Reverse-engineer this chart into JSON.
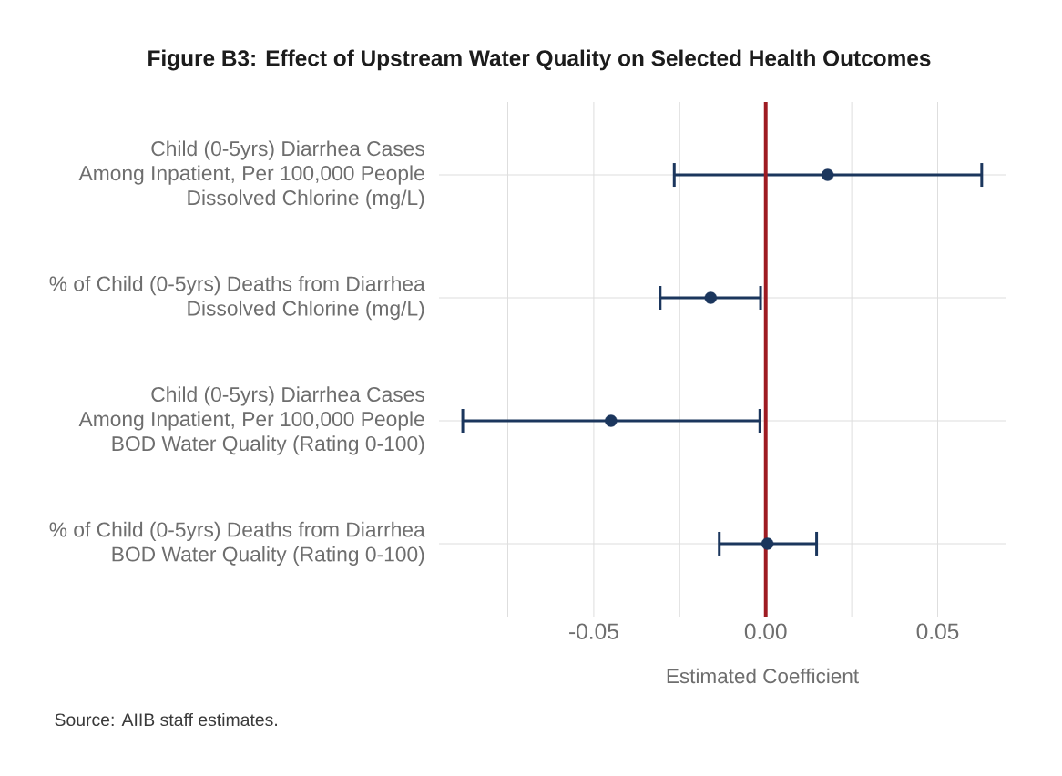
{
  "chart_data": {
    "type": "scatter",
    "title": "Figure B3: Effect of Upstream Water Quality on Selected Health Outcomes",
    "xlabel": "Estimated Coefficient",
    "orientation": "horizontal",
    "categories": [
      "Child (0-5yrs) Diarrhea Cases\nAmong Inpatient, Per 100,000 People\nDissolved Chlorine (mg/L)",
      "% of Child (0-5yrs) Deaths from Diarrhea\nDissolved Chlorine (mg/L)",
      "Child (0-5yrs) Diarrhea Cases\nAmong Inpatient, Per 100,000 People\nBOD Water Quality (Rating 0-100)",
      "% of Child (0-5yrs) Deaths from Diarrhea\nBOD Water Quality (Rating 0-100)"
    ],
    "values": [
      0.018,
      -0.016,
      -0.045,
      0.0005
    ],
    "errors": [
      [
        -0.0266,
        0.0628
      ],
      [
        -0.0307,
        -0.0015
      ],
      [
        -0.0881,
        -0.0017
      ],
      [
        -0.0135,
        0.0148
      ]
    ],
    "color": "#1b365d",
    "marker": "circle",
    "xlim": [
      -0.095,
      0.07
    ],
    "xticks": [
      {
        "value": -0.075,
        "label": null
      },
      {
        "value": -0.05,
        "label": "-0.05"
      },
      {
        "value": -0.025,
        "label": null
      },
      {
        "value": 0,
        "label": "0.00"
      },
      {
        "value": 0.025,
        "label": null
      },
      0.05
    ],
    "grid": true,
    "ref_lines": [
      {
        "axis": "x",
        "value": 0,
        "color": "#9e1b22"
      }
    ],
    "annotations": [
      "Source: AIIB staff estimates."
    ]
  }
}
